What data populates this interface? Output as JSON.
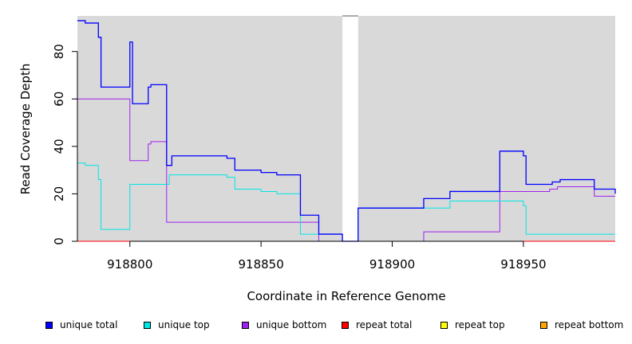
{
  "chart_data": {
    "type": "line",
    "title": "",
    "xlabel": "Coordinate in Reference Genome",
    "ylabel": "Read Coverage Depth",
    "xlim": [
      918780,
      918985
    ],
    "ylim": [
      0,
      95
    ],
    "x_ticks": [
      "918800",
      "918850",
      "918900",
      "918950"
    ],
    "x_tick_values": [
      918800,
      918850,
      918900,
      918950
    ],
    "y_ticks": [
      "0",
      "20",
      "40",
      "60",
      "80"
    ],
    "y_tick_values": [
      0,
      20,
      40,
      60,
      80
    ],
    "gaps": [
      {
        "from": 918881,
        "to": 918887
      }
    ],
    "plot_background": "#d9d9d9",
    "legend_placement": "bottom",
    "series": [
      {
        "name": "unique total",
        "color": "#0000ff",
        "steps": [
          [
            918780,
            93
          ],
          [
            918783,
            92
          ],
          [
            918788,
            86
          ],
          [
            918789,
            65
          ],
          [
            918800,
            84
          ],
          [
            918801,
            58
          ],
          [
            918807,
            65
          ],
          [
            918808,
            66
          ],
          [
            918814,
            32
          ],
          [
            918816,
            36
          ],
          [
            918837,
            35
          ],
          [
            918840,
            30
          ],
          [
            918850,
            29
          ],
          [
            918856,
            28
          ],
          [
            918865,
            11
          ],
          [
            918872,
            3
          ],
          [
            918881,
            0
          ],
          [
            918887,
            14
          ],
          [
            918912,
            18
          ],
          [
            918922,
            21
          ],
          [
            918941,
            38
          ],
          [
            918950,
            36
          ],
          [
            918951,
            24
          ],
          [
            918961,
            25
          ],
          [
            918964,
            26
          ],
          [
            918977,
            22
          ],
          [
            918985,
            20
          ]
        ]
      },
      {
        "name": "unique top",
        "color": "#00e5e5",
        "steps": [
          [
            918780,
            33
          ],
          [
            918783,
            32
          ],
          [
            918788,
            26
          ],
          [
            918789,
            5
          ],
          [
            918800,
            24
          ],
          [
            918815,
            28
          ],
          [
            918837,
            27
          ],
          [
            918840,
            22
          ],
          [
            918850,
            21
          ],
          [
            918856,
            20
          ],
          [
            918865,
            3
          ],
          [
            918872,
            3
          ],
          [
            918881,
            0
          ],
          [
            918887,
            14
          ],
          [
            918922,
            17
          ],
          [
            918950,
            15
          ],
          [
            918951,
            3
          ],
          [
            918985,
            3
          ]
        ]
      },
      {
        "name": "unique bottom",
        "color": "#a020f0",
        "steps": [
          [
            918780,
            60
          ],
          [
            918800,
            34
          ],
          [
            918807,
            41
          ],
          [
            918808,
            42
          ],
          [
            918814,
            8
          ],
          [
            918872,
            0
          ],
          [
            918912,
            4
          ],
          [
            918941,
            21
          ],
          [
            918960,
            22
          ],
          [
            918963,
            23
          ],
          [
            918977,
            19
          ],
          [
            918985,
            19
          ]
        ]
      },
      {
        "name": "repeat total",
        "color": "#ff0000",
        "steps": [
          [
            918780,
            0
          ],
          [
            918985,
            0
          ]
        ]
      },
      {
        "name": "repeat top",
        "color": "#ffff00",
        "steps": [
          [
            918780,
            0
          ],
          [
            918985,
            0
          ]
        ]
      },
      {
        "name": "repeat bottom",
        "color": "#ffa500",
        "steps": [
          [
            918780,
            0
          ],
          [
            918985,
            0
          ]
        ]
      }
    ]
  }
}
